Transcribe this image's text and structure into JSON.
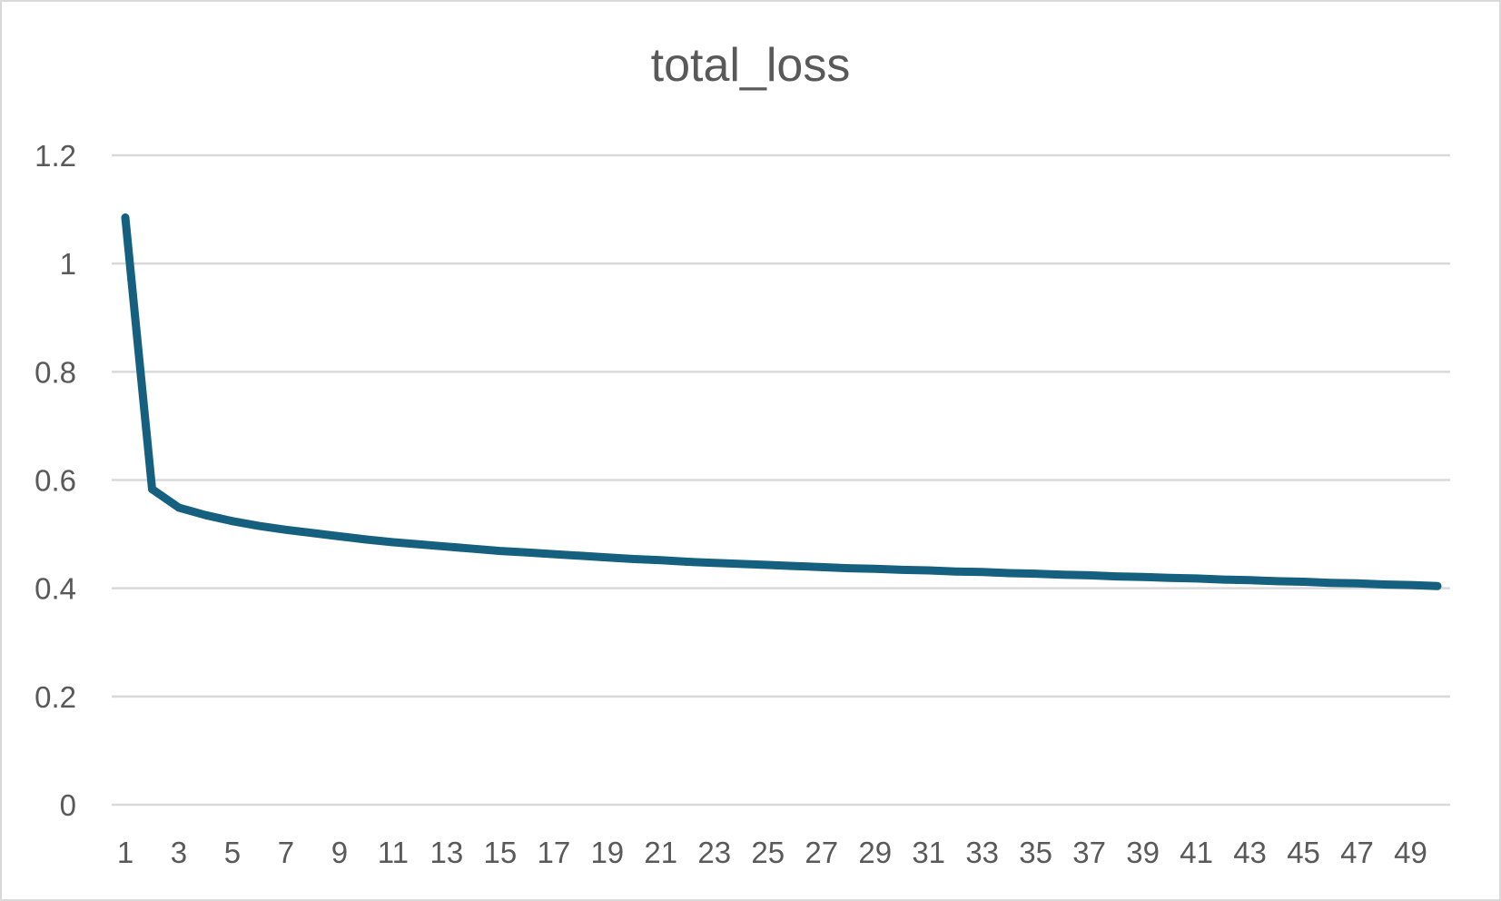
{
  "chart_data": {
    "type": "line",
    "title": "total_loss",
    "xlabel": "",
    "ylabel": "",
    "x": [
      1,
      2,
      3,
      4,
      5,
      6,
      7,
      8,
      9,
      10,
      11,
      12,
      13,
      14,
      15,
      16,
      17,
      18,
      19,
      20,
      21,
      22,
      23,
      24,
      25,
      26,
      27,
      28,
      29,
      30,
      31,
      32,
      33,
      34,
      35,
      36,
      37,
      38,
      39,
      40,
      41,
      42,
      43,
      44,
      45,
      46,
      47,
      48,
      49,
      50
    ],
    "x_tick_labels": [
      "1",
      "3",
      "5",
      "7",
      "9",
      "11",
      "13",
      "15",
      "17",
      "19",
      "21",
      "23",
      "25",
      "27",
      "29",
      "31",
      "33",
      "35",
      "37",
      "39",
      "41",
      "43",
      "45",
      "47",
      "49"
    ],
    "y_tick_labels": [
      "0",
      "0.2",
      "0.4",
      "0.6",
      "0.8",
      "1",
      "1.2"
    ],
    "ylim": [
      0,
      1.2
    ],
    "grid": true,
    "legend": "none",
    "series": [
      {
        "color": "#155f7f",
        "values": [
          1.085,
          0.583,
          0.549,
          0.535,
          0.524,
          0.515,
          0.508,
          0.502,
          0.496,
          0.49,
          0.485,
          0.481,
          0.477,
          0.473,
          0.469,
          0.466,
          0.463,
          0.46,
          0.457,
          0.454,
          0.452,
          0.449,
          0.447,
          0.445,
          0.443,
          0.441,
          0.439,
          0.437,
          0.436,
          0.434,
          0.433,
          0.431,
          0.43,
          0.428,
          0.427,
          0.425,
          0.424,
          0.422,
          0.421,
          0.419,
          0.418,
          0.416,
          0.415,
          0.413,
          0.412,
          0.41,
          0.409,
          0.407,
          0.406,
          0.404
        ]
      }
    ]
  }
}
